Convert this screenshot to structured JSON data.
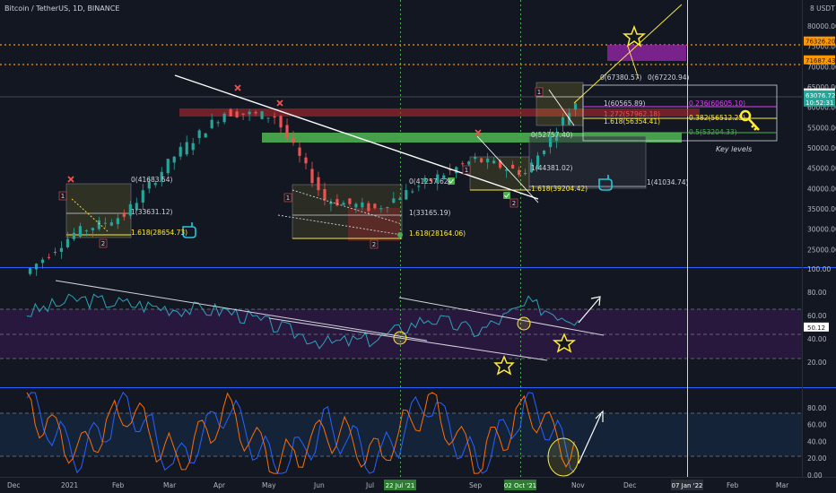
{
  "header": {
    "title": "Bitcoin / TetherUS, 1D, BINANCE",
    "currency": "USDT"
  },
  "colors": {
    "background": "#131722",
    "candle_up": "#26a69a",
    "candle_down": "#ef5350",
    "resistance_red": "#b2282f",
    "support_green": "#4caf50",
    "rsi_line": "#2ba3b8",
    "stoch_k": "#2962ff",
    "stoch_d": "#ff6d00",
    "highlight_yellow": "#ffeb3b",
    "purple_zone": "#9c27b0",
    "orange_level": "#ff9800"
  },
  "price_axis": {
    "ticks": [
      "80000.00",
      "75000.00",
      "70000.00",
      "65000.00",
      "60000.00",
      "55000.00",
      "50000.00",
      "45000.00",
      "40000.00",
      "35000.00",
      "30000.00",
      "25000.00"
    ],
    "badges": [
      {
        "value": "76326.20",
        "color": "#ff9800",
        "text_color": "#131722"
      },
      {
        "value": "71687.43",
        "color": "#ff9800",
        "text_color": "#131722"
      },
      {
        "value": "63558.84",
        "color": "#ffffff",
        "text_color": "#131722"
      },
      {
        "value": "63076.72",
        "color": "#26a69a",
        "text_color": "#ffffff"
      },
      {
        "value": "10:52:31",
        "color": "#26a69a",
        "text_color": "#ffffff"
      }
    ]
  },
  "time_axis": {
    "labels": [
      "Dec",
      "2021",
      "Feb",
      "Mar",
      "Apr",
      "May",
      "Jun",
      "Jul",
      "Sep",
      "Nov",
      "Dec",
      "Feb",
      "Mar"
    ],
    "highlight_labels": [
      {
        "text": "22 Jul '21",
        "color": "#2e7d32"
      },
      {
        "text": "02 Oct '21",
        "color": "#2e7d32"
      },
      {
        "text": "07 Jan '22",
        "color": "#2a2e39"
      }
    ]
  },
  "rsi_axis": {
    "ticks": [
      "100.00",
      "80.00",
      "60.00",
      "40.00",
      "20.00"
    ],
    "current": "50.12"
  },
  "stoch_axis": {
    "ticks": [
      "80.00",
      "60.00",
      "40.00",
      "20.00",
      "0.00"
    ]
  },
  "fib_labels": [
    {
      "text": "0(41683.54)",
      "color": "#d1d4dc"
    },
    {
      "text": "1(33631.12)",
      "color": "#d1d4dc"
    },
    {
      "text": "1.618(28654.73)",
      "color": "#ffeb3b"
    },
    {
      "text": "0(41257.62)",
      "color": "#d1d4dc"
    },
    {
      "text": "1(33165.19)",
      "color": "#d1d4dc"
    },
    {
      "text": "1.618(28164.06)",
      "color": "#ffeb3b"
    },
    {
      "text": "1(44381.02)",
      "color": "#d1d4dc"
    },
    {
      "text": "1.618(39204.42)",
      "color": "#ffeb3b"
    },
    {
      "text": "1(41034.74)",
      "color": "#d1d4dc"
    },
    {
      "text": "0(67380.57)",
      "color": "#d1d4dc"
    },
    {
      "text": "0(67220.94)",
      "color": "#d1d4dc"
    },
    {
      "text": "1(60565.89)",
      "color": "#d1d4dc"
    },
    {
      "text": "1.272(57962.18)",
      "color": "#ef5350"
    },
    {
      "text": "1.618(56354.41)",
      "color": "#ffeb3b"
    },
    {
      "text": "0(52757.40)",
      "color": "#d1d4dc"
    },
    {
      "text": "0.236(60605.10)",
      "color": "#e040fb"
    },
    {
      "text": "0.382(56512.25)",
      "color": "#ffeb3b"
    },
    {
      "text": "0.5(53204.33)",
      "color": "#4caf50"
    }
  ],
  "annotations": {
    "key_levels": "Key levels",
    "wave_labels": [
      "1",
      "2",
      "1",
      "2",
      "1",
      "2",
      "1"
    ]
  },
  "chart_data": [
    {
      "type": "line",
      "panel": "price",
      "title": "Bitcoin / TetherUS, 1D, BINANCE",
      "x": [
        "2020-12-01",
        "2021-01-01",
        "2021-02-01",
        "2021-03-01",
        "2021-04-01",
        "2021-05-01",
        "2021-06-01",
        "2021-07-01",
        "2021-08-01",
        "2021-09-01",
        "2021-10-01",
        "2021-11-01"
      ],
      "series": [
        {
          "values": [
            19000,
            29000,
            33500,
            48000,
            58800,
            57800,
            37300,
            35000,
            41500,
            47200,
            43800,
            61300
          ]
        }
      ],
      "ylim": [
        22000,
        82000
      ],
      "current_price": 63076.72,
      "horizontal_levels": [
        76326.2,
        71687.43,
        63558.84,
        60605.1,
        56512.25,
        53204.33
      ],
      "vertical_markers": [
        "22 Jul '21",
        "02 Oct '21",
        "07 Jan '22"
      ]
    },
    {
      "type": "line",
      "panel": "rsi",
      "ylim": [
        0,
        100
      ],
      "grid_levels": [
        70,
        50,
        30
      ],
      "current": 50.12,
      "x": [
        "2020-12-01",
        "2021-01-01",
        "2021-02-01",
        "2021-03-01",
        "2021-04-01",
        "2021-05-01",
        "2021-06-01",
        "2021-07-01",
        "2021-08-01",
        "2021-09-01",
        "2021-10-01",
        "2021-11-01"
      ],
      "series": [
        {
          "values": [
            62,
            74,
            70,
            66,
            64,
            50,
            36,
            40,
            58,
            46,
            70,
            56
          ]
        }
      ]
    },
    {
      "type": "line",
      "panel": "stoch_rsi",
      "ylim": [
        0,
        100
      ],
      "grid_levels": [
        80,
        20
      ],
      "x": [
        "2020-12-01",
        "2021-01-01",
        "2021-02-01",
        "2021-03-01",
        "2021-04-01",
        "2021-05-01",
        "2021-06-01",
        "2021-07-01",
        "2021-08-01",
        "2021-09-01",
        "2021-10-01",
        "2021-11-01"
      ],
      "series": [
        {
          "values": [
            90,
            20,
            85,
            10,
            80,
            5,
            60,
            15,
            90,
            10,
            85,
            15
          ]
        },
        {
          "values": [
            85,
            25,
            80,
            15,
            75,
            10,
            55,
            20,
            85,
            15,
            80,
            20
          ]
        }
      ]
    }
  ]
}
